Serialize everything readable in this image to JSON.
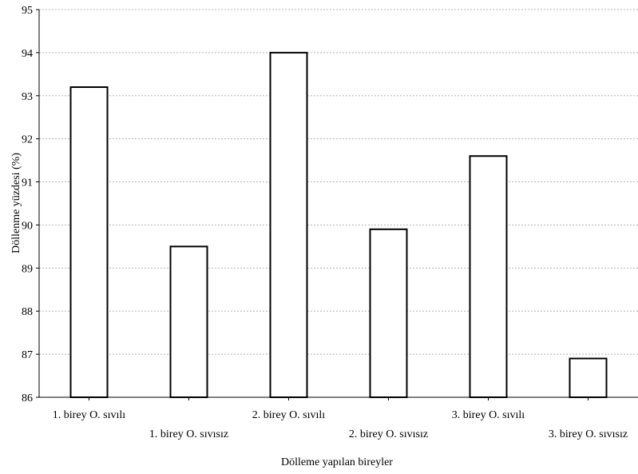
{
  "chart_data": {
    "type": "bar",
    "title": "",
    "xlabel": "Dölleme yapılan bireyler",
    "ylabel": "Döllenme yüzdesi (%)",
    "ylim": [
      86,
      95
    ],
    "yticks": [
      86,
      87,
      88,
      89,
      90,
      91,
      92,
      93,
      94,
      95
    ],
    "categories": [
      "1. birey O. sıvılı",
      "1. birey O. sıvısız",
      "2. birey O. sıvılı",
      "2. birey O. sıvısız",
      "3. birey O. sıvılı",
      "3. birey O. sıvısız"
    ],
    "values": [
      93.2,
      89.5,
      94.0,
      89.9,
      91.6,
      86.9
    ],
    "grid": true,
    "bar_fill": "#ffffff",
    "bar_stroke": "#000000",
    "grid_color": "#b5b5b5"
  }
}
